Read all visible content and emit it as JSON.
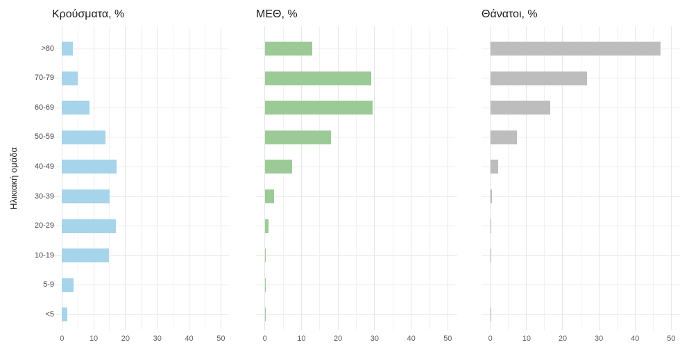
{
  "chart_data": {
    "type": "bar",
    "orientation": "horizontal",
    "title": "",
    "ylabel": "Ηλικιακή ομάδα",
    "xlabel": "",
    "categories_top_to_bottom": [
      ">80",
      "70-79",
      "60-69",
      "50-59",
      "40-49",
      "30-39",
      "20-29",
      "10-19",
      "5-9",
      "<5"
    ],
    "x_tick_labels": [
      0,
      10,
      20,
      30,
      40,
      50
    ],
    "x_minor_step": 5,
    "xlim": [
      -2.5,
      52.5
    ],
    "grid": "on",
    "legend": "none",
    "panels": [
      {
        "title": "Κρούσματα, %",
        "color": "#a6d4ea",
        "values": [
          3.5,
          5.0,
          8.7,
          13.8,
          17.1,
          15.1,
          17.0,
          14.7,
          3.6,
          1.6
        ]
      },
      {
        "title": "ΜΕΘ, %",
        "color": "#9cca96",
        "values": [
          13.0,
          29.0,
          29.5,
          18.0,
          7.5,
          2.5,
          1.0,
          0.3,
          0.15,
          0.2
        ]
      },
      {
        "title": "Θάνατοι, %",
        "color": "#bdbdbd",
        "values": [
          47.0,
          26.8,
          16.6,
          7.3,
          2.2,
          0.5,
          0.1,
          0.1,
          0.0,
          0.1
        ]
      }
    ]
  }
}
